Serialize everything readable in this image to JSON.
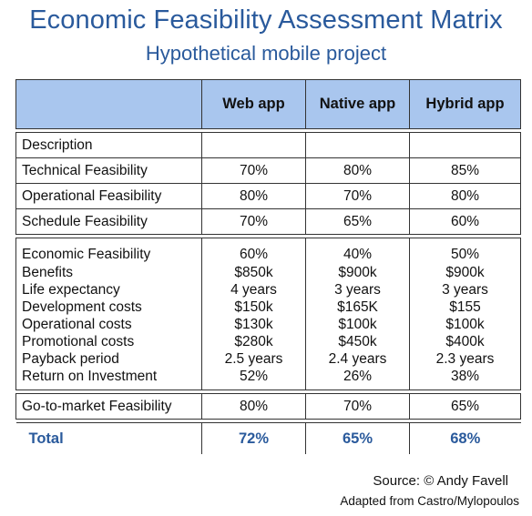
{
  "title": "Economic Feasibility Assessment Matrix",
  "subtitle": "Hypothetical mobile project",
  "columns": [
    "",
    "Web app",
    "Native app",
    "Hybrid app"
  ],
  "rows": [
    {
      "label": "Description",
      "values": [
        "",
        "",
        ""
      ]
    },
    {
      "label": "Technical Feasibility",
      "values": [
        "70%",
        "80%",
        "85%"
      ]
    },
    {
      "label": "Operational Feasibility",
      "values": [
        "80%",
        "70%",
        "80%"
      ]
    },
    {
      "label": "Schedule Feasibility",
      "values": [
        "70%",
        "65%",
        "60%"
      ]
    }
  ],
  "economic_rows": [
    {
      "label": "Economic Feasibility",
      "values": [
        "60%",
        "40%",
        "50%"
      ]
    },
    {
      "label": "Benefits",
      "values": [
        "$850k",
        "$900k",
        "$900k"
      ]
    },
    {
      "label": "Life expectancy",
      "values": [
        "4 years",
        "3 years",
        "3 years"
      ]
    },
    {
      "label": "Development costs",
      "values": [
        "$150k",
        "$165K",
        "$155"
      ]
    },
    {
      "label": "Operational costs",
      "values": [
        "$130k",
        "$100k",
        "$100k"
      ]
    },
    {
      "label": "Promotional costs",
      "values": [
        "$280k",
        "$450k",
        "$400k"
      ]
    },
    {
      "label": "Payback period",
      "values": [
        "2.5 years",
        "2.4 years",
        "2.3 years"
      ]
    },
    {
      "label": "Return on Investment",
      "values": [
        "52%",
        "26%",
        "38%"
      ]
    }
  ],
  "go_to_market": {
    "label": "Go-to-market Feasibility",
    "values": [
      "80%",
      "70%",
      "65%"
    ]
  },
  "total": {
    "label": "Total",
    "values": [
      "72%",
      "65%",
      "68%"
    ]
  },
  "source": "Source: © Andy Favell",
  "adapted": "Adapted from Castro/Mylopoulos",
  "colors": {
    "accent": "#2a5a9c",
    "header_bg": "#a9c6ee"
  }
}
